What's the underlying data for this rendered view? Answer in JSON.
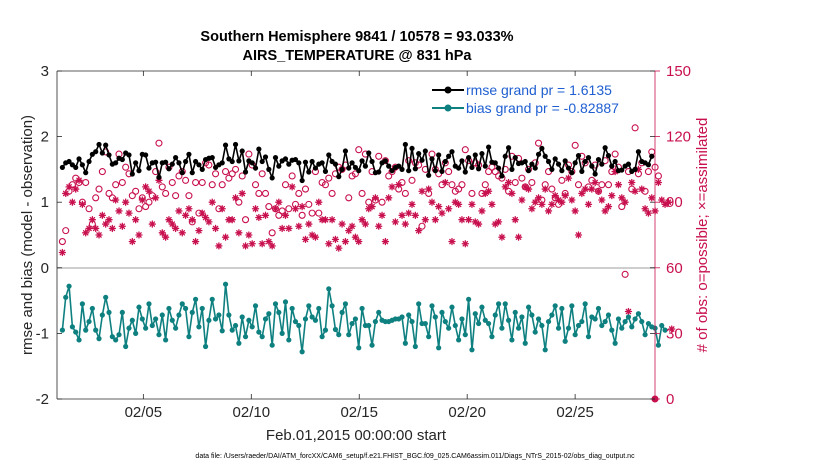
{
  "colors": {
    "rmse": "#000000",
    "bias": "#0f8080",
    "obs": "#c8104e",
    "zero_line": "#bdbdbd"
  },
  "chart_data": {
    "type": "line",
    "title": "Southern Hemisphere 9841 / 10578 = 93.033%",
    "subtitle": "AIRS_TEMPERATURE @ 831 hPa",
    "xlabel": "Feb.01,2015 00:00:00 start",
    "ylabel": "rmse and bias (model - observation)",
    "y2label": "# of obs: o=possible; ×=assimilated",
    "ylim": [
      -2,
      3
    ],
    "y2lim": [
      0,
      150
    ],
    "xlim": [
      1,
      28.7
    ],
    "y_ticks": [
      "3",
      "2",
      "1",
      "0",
      "-1",
      "-2"
    ],
    "y2_ticks": [
      "150",
      "120",
      "90",
      "60",
      "30",
      "0"
    ],
    "x_ticks": [
      {
        "label": "02/05",
        "day": 5
      },
      {
        "label": "02/10",
        "day": 10
      },
      {
        "label": "02/15",
        "day": 15
      },
      {
        "label": "02/20",
        "day": 20
      },
      {
        "label": "02/25",
        "day": 25
      }
    ],
    "legend": [
      "rmse grand pr = 1.6135",
      "bias grand pr = -0.82887"
    ],
    "legend_position": "top-right",
    "zero_line": 0,
    "series": [
      {
        "name": "rmse",
        "axis": "left",
        "marker": "dot",
        "values": [
          1.53,
          1.6,
          1.62,
          1.57,
          1.53,
          1.66,
          1.57,
          1.45,
          1.62,
          1.73,
          1.77,
          1.88,
          1.75,
          1.87,
          1.72,
          1.58,
          1.6,
          1.67,
          1.65,
          1.75,
          1.72,
          1.43,
          1.6,
          1.48,
          1.73,
          1.72,
          1.52,
          1.6,
          1.61,
          1.38,
          1.6,
          1.61,
          1.51,
          1.58,
          1.68,
          1.6,
          1.45,
          1.62,
          1.73,
          1.45,
          1.62,
          1.57,
          1.5,
          1.65,
          1.67,
          1.68,
          1.53,
          1.57,
          1.6,
          1.87,
          1.66,
          1.62,
          1.88,
          1.63,
          1.78,
          1.46,
          1.63,
          1.6,
          1.52,
          1.81,
          1.62,
          1.69,
          1.5,
          1.37,
          1.68,
          1.55,
          1.63,
          1.66,
          1.58,
          1.64,
          1.65,
          1.6,
          1.33,
          1.61,
          1.46,
          1.62,
          1.52,
          1.58,
          1.6,
          1.47,
          1.72,
          1.62,
          1.58,
          1.39,
          1.5,
          1.78,
          1.52,
          1.6,
          1.53,
          1.48,
          1.63,
          1.55,
          1.75,
          1.62,
          1.45,
          1.46,
          1.6,
          1.63,
          1.55,
          1.48,
          1.53,
          1.55,
          1.5,
          1.88,
          1.48,
          1.82,
          1.51,
          1.74,
          1.64,
          1.78,
          1.41,
          1.66,
          1.48,
          1.72,
          1.47,
          1.62,
          1.7,
          1.77,
          1.55,
          1.52,
          1.63,
          1.46,
          1.68,
          1.53,
          1.72,
          1.51,
          1.74,
          1.55,
          1.84,
          1.61,
          1.6,
          1.52,
          1.4,
          1.7,
          1.83,
          1.5,
          1.68,
          1.59,
          1.6,
          1.62,
          1.48,
          1.58,
          1.52,
          1.73,
          1.82,
          1.7,
          1.62,
          1.5,
          1.66,
          1.58,
          1.48,
          1.63,
          1.52,
          1.45,
          1.6,
          1.71,
          1.47,
          1.62,
          1.68,
          1.55,
          1.43,
          1.65,
          1.58,
          1.83,
          1.71,
          1.55,
          1.62,
          1.48,
          1.49,
          1.55,
          1.58,
          1.47,
          1.5,
          1.77,
          1.62,
          1.6,
          1.57,
          1.7
        ]
      },
      {
        "name": "bias",
        "axis": "left",
        "marker": "dot",
        "values": [
          -0.95,
          -0.45,
          -0.28,
          -0.9,
          -0.98,
          -1.1,
          -0.55,
          -0.95,
          -0.82,
          -0.62,
          -0.95,
          -1.08,
          -0.72,
          -0.45,
          -0.68,
          -1.05,
          -1.1,
          -1.02,
          -0.68,
          -1.2,
          -0.92,
          -0.8,
          -1.0,
          -0.6,
          -0.78,
          -0.92,
          -0.55,
          -0.88,
          -0.78,
          -1.02,
          -0.72,
          -1.1,
          -0.62,
          -0.8,
          -0.92,
          -0.72,
          -0.55,
          -0.62,
          -1.05,
          -0.68,
          -0.48,
          -0.9,
          -0.62,
          -1.2,
          -0.8,
          -0.48,
          -0.78,
          -0.72,
          -0.96,
          -0.25,
          -0.72,
          -0.95,
          -0.88,
          -1.15,
          -0.75,
          -1.05,
          -0.8,
          -0.9,
          -0.58,
          -0.98,
          -1.05,
          -0.78,
          -0.7,
          -1.18,
          -0.55,
          -0.68,
          -1.0,
          -0.52,
          -1.1,
          -0.62,
          -0.82,
          -0.88,
          -1.28,
          -0.78,
          -0.58,
          -0.75,
          -0.8,
          -0.62,
          -1.05,
          -0.95,
          -0.32,
          -0.58,
          -0.94,
          -1.02,
          -0.68,
          -0.55,
          -1.02,
          -0.85,
          -0.78,
          -1.22,
          -0.62,
          -0.88,
          -0.88,
          -1.18,
          -0.82,
          -0.68,
          -0.8,
          -0.82,
          -0.82,
          -0.8,
          -0.78,
          -0.78,
          -0.75,
          -1.15,
          -0.72,
          -0.82,
          -1.2,
          -0.55,
          -0.85,
          -0.85,
          -1.05,
          -0.58,
          -0.75,
          -1.22,
          -0.68,
          -0.82,
          -0.92,
          -0.6,
          -0.88,
          -1.1,
          -0.78,
          -1.02,
          -0.48,
          -1.25,
          -0.7,
          -0.85,
          -0.6,
          -0.8,
          -0.85,
          -1.05,
          -0.72,
          -0.55,
          -0.92,
          -0.55,
          -0.8,
          -1.1,
          -0.68,
          -0.92,
          -0.75,
          -1.15,
          -0.6,
          -0.72,
          -0.98,
          -0.78,
          -0.88,
          -1.25,
          -0.82,
          -0.72,
          -0.58,
          -0.92,
          -0.62,
          -1.12,
          -0.92,
          -0.58,
          -1.02,
          -0.88,
          -0.82,
          -0.55,
          -1.05,
          -0.75,
          -0.78,
          -0.62,
          -0.88,
          -0.82,
          -0.72,
          -0.95,
          -1.15,
          -0.78,
          -0.92,
          -0.82,
          -0.75,
          -0.9,
          -0.78,
          -0.7,
          -0.82,
          -1.02,
          -0.85,
          -0.9,
          -0.92,
          -1.18,
          -0.88,
          -0.95
        ]
      },
      {
        "name": "obs possible",
        "axis": "right",
        "marker": "circle",
        "values": [
          72,
          77,
          95,
          98,
          101,
          99,
          90,
          99,
          87,
          80,
          92,
          96,
          104,
          113,
          94,
          92,
          98,
          112,
          99,
          106,
          103,
          93,
          95,
          87,
          92,
          88,
          90,
          93,
          104,
          117,
          97,
          94,
          106,
          99,
          93,
          102,
          104,
          100,
          93,
          81,
          99,
          85,
          99,
          108,
          107,
          98,
          103,
          87,
          98,
          104,
          101,
          103,
          105,
          90,
          102,
          82,
          112,
          107,
          98,
          94,
          103,
          94,
          88,
          76,
          87,
          84,
          86,
          98,
          87,
          102,
          89,
          94,
          84,
          96,
          89,
          85,
          104,
          85,
          99,
          98,
          101,
          94,
          103,
          106,
          105,
          107,
          92,
          102,
          103,
          114,
          94,
          112,
          90,
          104,
          91,
          111,
          90,
          109,
          102,
          104,
          106,
          96,
          99,
          94,
          109,
          100,
          108,
          107,
          79,
          105,
          94,
          112,
          105,
          103,
          98,
          108,
          104,
          98,
          95,
          96,
          98,
          114,
          109,
          94,
          108,
          107,
          94,
          98,
          104,
          106,
          104,
          102,
          101,
          105,
          95,
          111,
          99,
          110,
          101,
          97,
          105,
          99,
          108,
          117,
          91,
          98,
          104,
          96,
          92,
          89,
          100,
          94,
          107,
          104,
          116,
          98,
          111,
          108,
          97,
          100,
          107,
          95,
          98,
          109,
          98,
          104,
          112,
          106,
          88,
          57,
          104,
          96,
          124,
          103,
          108,
          95,
          104,
          113,
          106,
          102
        ]
      },
      {
        "name": "obs assimilated",
        "axis": "right",
        "marker": "asterisk",
        "values": [
          67,
          94,
          97,
          90,
          96,
          100,
          89,
          76,
          78,
          82,
          78,
          75,
          84,
          80,
          82,
          78,
          91,
          86,
          79,
          90,
          85,
          72,
          82,
          75,
          91,
          97,
          95,
          80,
          92,
          100,
          76,
          74,
          82,
          80,
          78,
          86,
          76,
          84,
          87,
          82,
          72,
          77,
          85,
          83,
          81,
          90,
          78,
          70,
          87,
          74,
          82,
          82,
          92,
          76,
          94,
          70,
          75,
          71,
          87,
          83,
          71,
          84,
          72,
          70,
          87,
          90,
          78,
          84,
          78,
          97,
          87,
          79,
          88,
          73,
          80,
          75,
          74,
          90,
          82,
          82,
          71,
          82,
          73,
          69,
          80,
          72,
          77,
          79,
          74,
          72,
          82,
          80,
          87,
          88,
          92,
          79,
          84,
          72,
          92,
          97,
          81,
          98,
          84,
          80,
          85,
          89,
          84,
          77,
          95,
          82,
          96,
          90,
          82,
          88,
          85,
          99,
          87,
          72,
          90,
          89,
          82,
          71,
          82,
          89,
          81,
          80,
          86,
          94,
          95,
          89,
          80,
          81,
          74,
          97,
          99,
          94,
          82,
          74,
          91,
          97,
          96,
          87,
          90,
          92,
          89,
          96,
          86,
          89,
          93,
          91,
          90,
          93,
          101,
          91,
          86,
          75,
          94,
          96,
          89,
          96,
          99,
          95,
          91,
          86,
          88,
          93,
          104,
          98,
          92,
          90,
          40,
          99,
          95,
          105,
          96,
          87,
          85,
          92,
          86,
          99,
          91,
          89,
          90,
          32
        ]
      }
    ]
  },
  "footer": "data file: /Users/raeder/DAI/ATM_forcXX/CAM6_setup/f.e21.FHIST_BGC.f09_025.CAM6assim.011/Diags_NTrS_2015-02/obs_diag_output.nc"
}
